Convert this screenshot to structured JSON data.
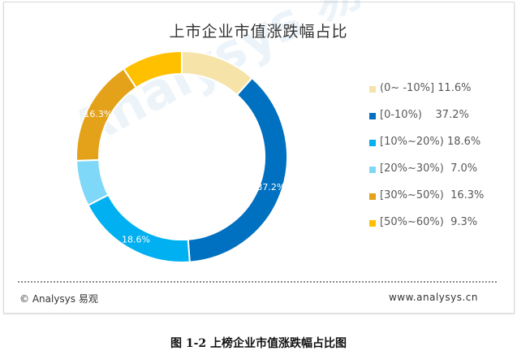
{
  "chart_data": {
    "type": "pie",
    "title": "上市企业市值涨跌幅占比",
    "donut": true,
    "categories": [
      "(0~ -10%]",
      "[0-10%)",
      "[10%~20%)",
      "[20%~30%)",
      "[30%~50%)",
      "[50%~60%)"
    ],
    "values": [
      11.6,
      37.2,
      18.6,
      7.0,
      16.3,
      9.3
    ],
    "colors": [
      "#f6e3a8",
      "#0070c0",
      "#00b0f0",
      "#7fd8f8",
      "#e3a21a",
      "#ffc000"
    ],
    "data_labels": [
      "",
      "37.2%",
      "18.6%",
      "",
      "16.3%",
      ""
    ],
    "legend": {
      "placement": "right",
      "entries": [
        "(0~ -10%] 11.6%",
        "[0-10%)    37.2%",
        "[10%~20%) 18.6%",
        "[20%~30%)  7.0%",
        "[30%~50%)  16.3%",
        "[50%~60%)  9.3%"
      ]
    }
  },
  "watermark": "Analysys 易观",
  "footer": {
    "left": "© Analysys 易观",
    "right": "www.analysys.cn"
  },
  "caption": "图 1-2  上榜企业市值涨跌幅占比图"
}
